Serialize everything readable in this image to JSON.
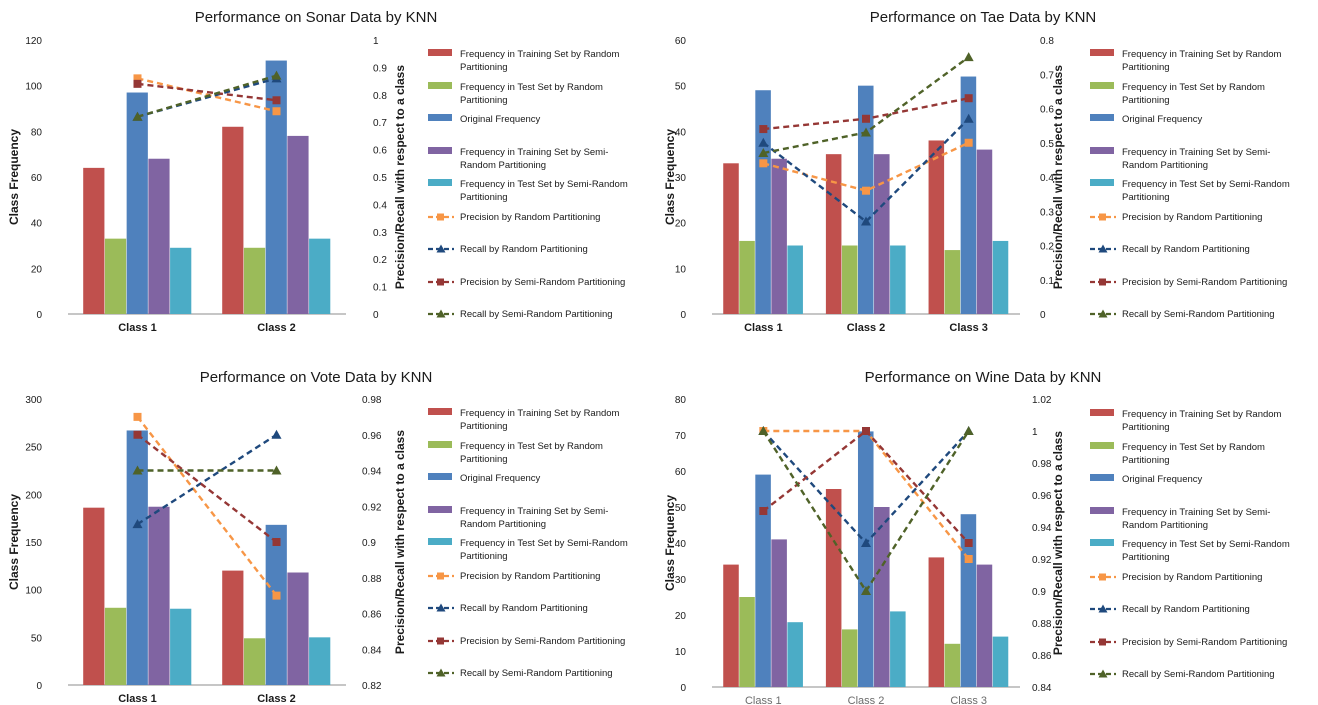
{
  "colors": {
    "train_random": "#c0504d",
    "test_random": "#9bbb59",
    "original": "#4f81bd",
    "train_semi": "#8064a2",
    "test_semi": "#4bacc6",
    "precision_random": "#f79646",
    "recall_random": "#1f497d",
    "precision_semi": "#953735",
    "recall_semi": "#4f6228"
  },
  "legend_labels": [
    [
      "Frequency in Training Set by Random",
      "Partitioning"
    ],
    [
      "Frequency in Test Set by Random",
      "Partitioning"
    ],
    [
      "Original Frequency"
    ],
    [
      "Frequency in Training Set by Semi-",
      "Random Partitioning"
    ],
    [
      "Frequency in Test Set by  Semi-Random",
      "Partitioning"
    ],
    [
      "Precision by Random Partitioning"
    ],
    [
      "Recall by Random Partitioning"
    ],
    [
      "Precision by Semi-Random Partitioning"
    ],
    [
      "Recall by  Semi-Random Partitioning"
    ]
  ],
  "chart_data": [
    {
      "type": "bar",
      "title": "Performance on Sonar Data by KNN",
      "ylabel": "Class Frequency",
      "y2label": "Precision/Recall with respect to a class",
      "categories": [
        "Class 1",
        "Class 2"
      ],
      "ylim": [
        0,
        120
      ],
      "yticks": [
        "0",
        "20",
        "40",
        "60",
        "80",
        "100",
        "120"
      ],
      "y2lim": [
        0,
        1
      ],
      "y2ticks": [
        "0",
        "0.1",
        "0.2",
        "0.3",
        "0.4",
        "0.5",
        "0.6",
        "0.7",
        "0.8",
        "0.9",
        "1"
      ],
      "bar_series": [
        {
          "name": "Frequency in Training Set by Random Partitioning",
          "values": [
            64,
            82
          ]
        },
        {
          "name": "Frequency in Test Set by Random Partitioning",
          "values": [
            33,
            29
          ]
        },
        {
          "name": "Original Frequency",
          "values": [
            97,
            111
          ]
        },
        {
          "name": "Frequency in Training Set by Semi-Random Partitioning",
          "values": [
            68,
            78
          ]
        },
        {
          "name": "Frequency in Test Set by  Semi-Random Partitioning",
          "values": [
            29,
            33
          ]
        }
      ],
      "line_series": [
        {
          "name": "Precision by Random Partitioning",
          "values": [
            0.86,
            0.74
          ]
        },
        {
          "name": "Recall by Random Partitioning",
          "values": [
            0.72,
            0.86
          ]
        },
        {
          "name": "Precision by Semi-Random Partitioning",
          "values": [
            0.84,
            0.78
          ]
        },
        {
          "name": "Recall by  Semi-Random Partitioning",
          "values": [
            0.72,
            0.87
          ]
        }
      ],
      "legend": "right"
    },
    {
      "type": "bar",
      "title": "Performance on Tae Data by KNN",
      "ylabel": "Class Frequency",
      "y2label": "Precision/Recall with respect to a class",
      "categories": [
        "Class 1",
        "Class 2",
        "Class 3"
      ],
      "ylim": [
        0,
        60
      ],
      "yticks": [
        "0",
        "10",
        "20",
        "30",
        "40",
        "50",
        "60"
      ],
      "y2lim": [
        0,
        0.8
      ],
      "y2ticks": [
        "0",
        "0.1",
        "0.2",
        "0.3",
        "0.4",
        "0.5",
        "0.6",
        "0.7",
        "0.8"
      ],
      "bar_series": [
        {
          "name": "Frequency in Training Set by Random Partitioning",
          "values": [
            33,
            35,
            38
          ]
        },
        {
          "name": "Frequency in Test Set by Random Partitioning",
          "values": [
            16,
            15,
            14
          ]
        },
        {
          "name": "Original Frequency",
          "values": [
            49,
            50,
            52
          ]
        },
        {
          "name": "Frequency in Training Set by Semi-Random Partitioning",
          "values": [
            34,
            35,
            36
          ]
        },
        {
          "name": "Frequency in Test Set by  Semi-Random Partitioning",
          "values": [
            15,
            15,
            16
          ]
        }
      ],
      "line_series": [
        {
          "name": "Precision by Random Partitioning",
          "values": [
            0.44,
            0.36,
            0.5
          ]
        },
        {
          "name": "Recall by Random Partitioning",
          "values": [
            0.5,
            0.27,
            0.57
          ]
        },
        {
          "name": "Precision by Semi-Random Partitioning",
          "values": [
            0.54,
            0.57,
            0.63
          ]
        },
        {
          "name": "Recall by  Semi-Random Partitioning",
          "values": [
            0.47,
            0.53,
            0.75
          ]
        }
      ],
      "legend": "right"
    },
    {
      "type": "bar",
      "title": "Performance on Vote Data by KNN",
      "ylabel": "Class Frequency",
      "y2label": "Precision/Recall with respect to a class",
      "categories": [
        "Class 1",
        "Class 2"
      ],
      "ylim": [
        0,
        300
      ],
      "yticks": [
        "0",
        "50",
        "100",
        "150",
        "200",
        "250",
        "300"
      ],
      "y2lim": [
        0.82,
        0.98
      ],
      "y2ticks": [
        "0.82",
        "0.84",
        "0.86",
        "0.88",
        "0.9",
        "0.92",
        "0.94",
        "0.96",
        "0.98"
      ],
      "bar_series": [
        {
          "name": "Frequency in Training Set by Random Partitioning",
          "values": [
            186,
            120
          ]
        },
        {
          "name": "Frequency in Test Set by Random Partitioning",
          "values": [
            81,
            49
          ]
        },
        {
          "name": "Original Frequency",
          "values": [
            267,
            168
          ]
        },
        {
          "name": "Frequency in Training Set by Semi-Random Partitioning",
          "values": [
            187,
            118
          ]
        },
        {
          "name": "Frequency in Test Set by  Semi-Random Partitioning",
          "values": [
            80,
            50
          ]
        }
      ],
      "line_series": [
        {
          "name": "Precision by Random Partitioning",
          "values": [
            0.97,
            0.87
          ]
        },
        {
          "name": "Recall by Random Partitioning",
          "values": [
            0.91,
            0.96
          ]
        },
        {
          "name": "Precision by Semi-Random Partitioning",
          "values": [
            0.96,
            0.9
          ]
        },
        {
          "name": "Recall by  Semi-Random Partitioning",
          "values": [
            0.94,
            0.94
          ]
        }
      ],
      "legend": "right"
    },
    {
      "type": "bar",
      "title": "Performance on Wine Data by KNN",
      "ylabel": "Class Frequency",
      "y2label": "Precision/Recall with respect to a class",
      "categories": [
        "Class 1",
        "Class 2",
        "Class 3"
      ],
      "ylim": [
        0,
        80
      ],
      "yticks": [
        "0",
        "10",
        "20",
        "30",
        "40",
        "50",
        "60",
        "70",
        "80"
      ],
      "y2lim": [
        0.84,
        1.02
      ],
      "y2ticks": [
        "0.84",
        "0.86",
        "0.88",
        "0.9",
        "0.92",
        "0.94",
        "0.96",
        "0.98",
        "1",
        "1.02"
      ],
      "bar_series": [
        {
          "name": "Frequency in Training Set by Random Partitioning",
          "values": [
            34,
            55,
            36
          ]
        },
        {
          "name": "Frequency in Test Set by Random Partitioning",
          "values": [
            25,
            16,
            12
          ]
        },
        {
          "name": "Original Frequency",
          "values": [
            59,
            71,
            48
          ]
        },
        {
          "name": "Frequency in Training Set by Semi-Random Partitioning",
          "values": [
            41,
            50,
            34
          ]
        },
        {
          "name": "Frequency in Test Set by  Semi-Random Partitioning",
          "values": [
            18,
            21,
            14
          ]
        }
      ],
      "line_series": [
        {
          "name": "Precision by Random Partitioning",
          "values": [
            1.0,
            1.0,
            0.92
          ]
        },
        {
          "name": "Recall by Random Partitioning",
          "values": [
            1.0,
            0.93,
            1.0
          ]
        },
        {
          "name": "Precision by Semi-Random Partitioning",
          "values": [
            0.95,
            1.0,
            0.93
          ]
        },
        {
          "name": "Recall by  Semi-Random Partitioning",
          "values": [
            1.0,
            0.9,
            1.0
          ]
        }
      ],
      "legend": "right"
    }
  ]
}
